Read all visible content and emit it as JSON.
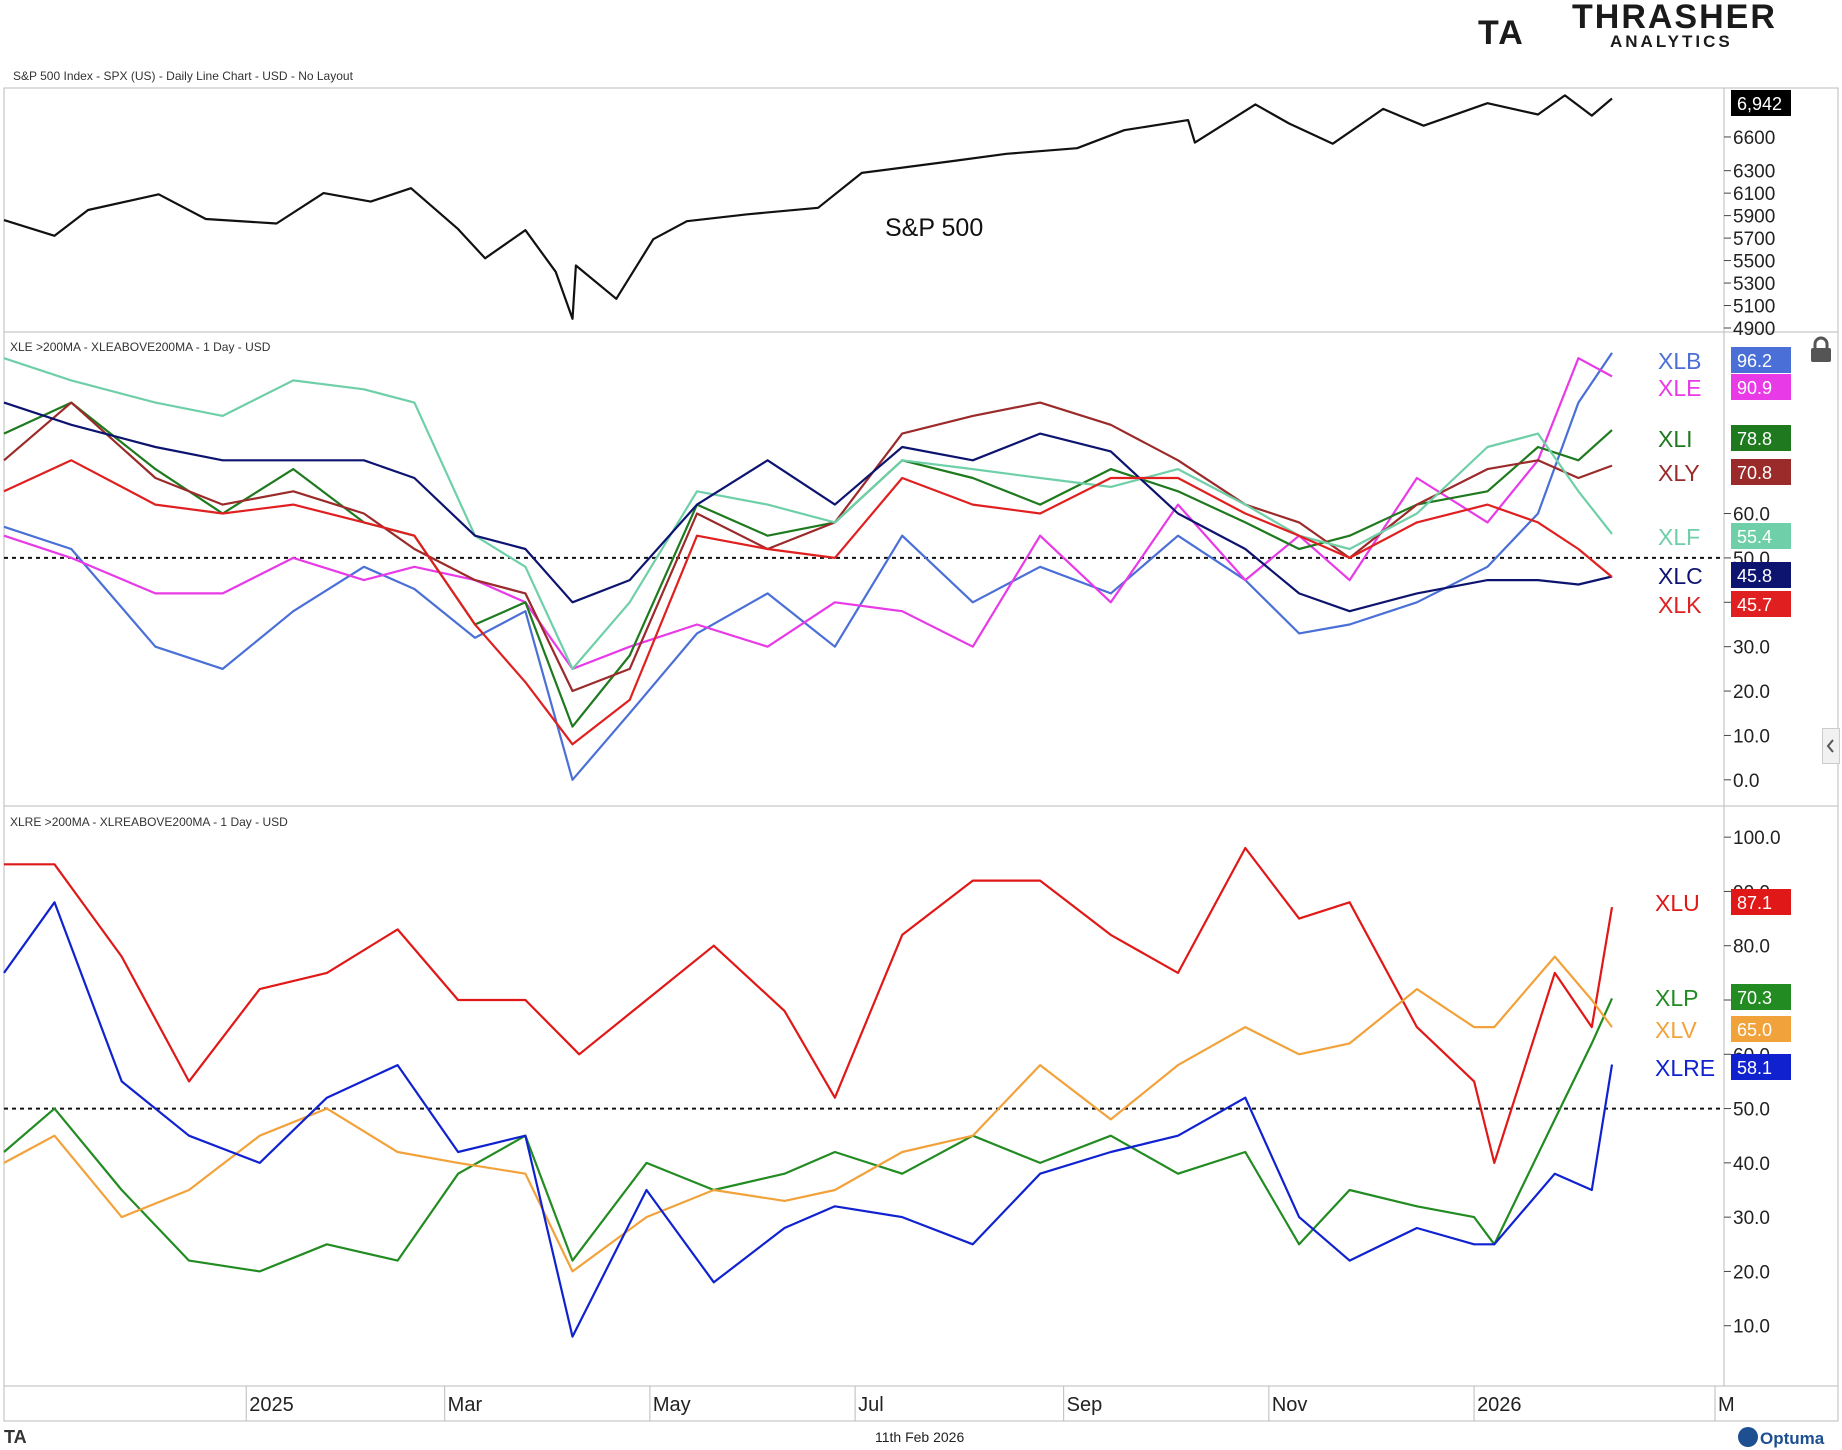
{
  "header": {
    "logo_mark": "TA",
    "logo_name": "THRASHER",
    "logo_sub": "ANALYTICS"
  },
  "footer": {
    "left_mark": "TA",
    "date": "11th Feb 2026",
    "brand": "Optuma"
  },
  "colors": {
    "spx": "#111111",
    "XLB": "#4a6fd6",
    "XLE": "#e83ae6",
    "XLI": "#1f7a1f",
    "XLY": "#9b2a2a",
    "XLF": "#6fcfa8",
    "XLC": "#0d1470",
    "XLK": "#e02020",
    "XLU": "#e01818",
    "XLP": "#228b22",
    "XLV": "#f2a23a",
    "XLRE": "#1022d0"
  },
  "chart_data": [
    {
      "type": "line",
      "title": "S&P 500 Index - SPX (US) - Daily Line Chart - USD - No Layout",
      "annotation": "S&P 500",
      "x_ticks": [
        "2025",
        "Mar",
        "May",
        "Jul",
        "Sep",
        "Nov",
        "2026",
        "M"
      ],
      "y_ticks": [
        "6600",
        "6300",
        "6100",
        "5900",
        "5700",
        "5500",
        "5300",
        "5100",
        "4900"
      ],
      "series": [
        {
          "id": "spx",
          "last_value": "6,942",
          "x": [
            "2024-10-21",
            "2024-11-05",
            "2024-11-15",
            "2024-12-06",
            "2024-12-20",
            "2025-01-10",
            "2025-01-24",
            "2025-02-07",
            "2025-02-19",
            "2025-03-05",
            "2025-03-13",
            "2025-03-25",
            "2025-04-03",
            "2025-04-08",
            "2025-04-09",
            "2025-04-21",
            "2025-05-02",
            "2025-05-12",
            "2025-05-30",
            "2025-06-20",
            "2025-07-03",
            "2025-07-31",
            "2025-08-15",
            "2025-09-05",
            "2025-09-19",
            "2025-10-08",
            "2025-10-10",
            "2025-10-28",
            "2025-11-07",
            "2025-11-20",
            "2025-12-05",
            "2025-12-17",
            "2026-01-05",
            "2026-01-20",
            "2026-01-28",
            "2026-02-05",
            "2026-02-11"
          ],
          "y": [
            5860,
            5720,
            5950,
            6090,
            5870,
            5830,
            6100,
            6025,
            6144,
            5780,
            5520,
            5770,
            5400,
            4982,
            5456,
            5160,
            5690,
            5850,
            5912,
            5970,
            6280,
            6390,
            6450,
            6500,
            6660,
            6750,
            6550,
            6890,
            6720,
            6540,
            6850,
            6700,
            6900,
            6800,
            6970,
            6790,
            6942
          ]
        }
      ]
    },
    {
      "type": "line",
      "title": "XLE >200MA  - XLEABOVE200MA - 1 Day - USD",
      "x_ticks": [
        "2025",
        "Mar",
        "May",
        "Jul",
        "Sep",
        "Nov",
        "2026",
        "M"
      ],
      "y_ticks": [
        "60.0",
        "50.0",
        "40.0",
        "30.0",
        "20.0",
        "10.0",
        "0.0"
      ],
      "reference_line": 50,
      "series": [
        {
          "name": "XLB",
          "last_value": "96.2",
          "x": [
            "2024-10-21",
            "2024-11-10",
            "2024-12-05",
            "2024-12-25",
            "2025-01-15",
            "2025-02-05",
            "2025-02-20",
            "2025-03-10",
            "2025-03-25",
            "2025-04-08",
            "2025-04-25",
            "2025-05-15",
            "2025-06-05",
            "2025-06-25",
            "2025-07-15",
            "2025-08-05",
            "2025-08-25",
            "2025-09-15",
            "2025-10-05",
            "2025-10-25",
            "2025-11-10",
            "2025-11-25",
            "2025-12-15",
            "2026-01-05",
            "2026-01-20",
            "2026-02-01",
            "2026-02-11"
          ],
          "y": [
            57,
            52,
            30,
            25,
            38,
            48,
            43,
            32,
            38,
            0,
            15,
            33,
            42,
            30,
            55,
            40,
            48,
            42,
            55,
            45,
            33,
            35,
            40,
            48,
            60,
            85,
            96.2
          ]
        },
        {
          "name": "XLE",
          "last_value": "90.9",
          "x": [
            "2024-10-21",
            "2024-11-10",
            "2024-12-05",
            "2024-12-25",
            "2025-01-15",
            "2025-02-05",
            "2025-02-20",
            "2025-03-10",
            "2025-03-25",
            "2025-04-08",
            "2025-04-25",
            "2025-05-15",
            "2025-06-05",
            "2025-06-25",
            "2025-07-15",
            "2025-08-05",
            "2025-08-25",
            "2025-09-15",
            "2025-10-05",
            "2025-10-25",
            "2025-11-10",
            "2025-11-25",
            "2025-12-15",
            "2026-01-05",
            "2026-01-20",
            "2026-02-01",
            "2026-02-11"
          ],
          "y": [
            55,
            50,
            42,
            42,
            50,
            45,
            48,
            45,
            40,
            25,
            30,
            35,
            30,
            40,
            38,
            30,
            55,
            40,
            62,
            45,
            55,
            45,
            68,
            58,
            72,
            95,
            90.9
          ]
        },
        {
          "name": "XLI",
          "last_value": "78.8",
          "x": [
            "2024-10-21",
            "2024-11-10",
            "2024-12-05",
            "2024-12-25",
            "2025-01-15",
            "2025-02-05",
            "2025-02-20",
            "2025-03-10",
            "2025-03-25",
            "2025-04-08",
            "2025-04-25",
            "2025-05-15",
            "2025-06-05",
            "2025-06-25",
            "2025-07-15",
            "2025-08-05",
            "2025-08-25",
            "2025-09-15",
            "2025-10-05",
            "2025-10-25",
            "2025-11-10",
            "2025-11-25",
            "2025-12-15",
            "2026-01-05",
            "2026-01-20",
            "2026-02-01",
            "2026-02-11"
          ],
          "y": [
            78,
            85,
            70,
            60,
            70,
            58,
            55,
            35,
            40,
            12,
            28,
            62,
            55,
            58,
            72,
            68,
            62,
            70,
            65,
            58,
            52,
            55,
            62,
            65,
            75,
            72,
            78.8
          ]
        },
        {
          "name": "XLY",
          "last_value": "70.8",
          "x": [
            "2024-10-21",
            "2024-11-10",
            "2024-12-05",
            "2024-12-25",
            "2025-01-15",
            "2025-02-05",
            "2025-02-20",
            "2025-03-10",
            "2025-03-25",
            "2025-04-08",
            "2025-04-25",
            "2025-05-15",
            "2025-06-05",
            "2025-06-25",
            "2025-07-15",
            "2025-08-05",
            "2025-08-25",
            "2025-09-15",
            "2025-10-05",
            "2025-10-25",
            "2025-11-10",
            "2025-11-25",
            "2025-12-15",
            "2026-01-05",
            "2026-01-20",
            "2026-02-01",
            "2026-02-11"
          ],
          "y": [
            72,
            85,
            68,
            62,
            65,
            60,
            52,
            45,
            42,
            20,
            25,
            60,
            52,
            58,
            78,
            82,
            85,
            80,
            72,
            62,
            58,
            50,
            62,
            70,
            72,
            68,
            70.8
          ]
        },
        {
          "name": "XLF",
          "last_value": "55.4",
          "x": [
            "2024-10-21",
            "2024-11-10",
            "2024-12-05",
            "2024-12-25",
            "2025-01-15",
            "2025-02-05",
            "2025-02-20",
            "2025-03-10",
            "2025-03-25",
            "2025-04-08",
            "2025-04-25",
            "2025-05-15",
            "2025-06-05",
            "2025-06-25",
            "2025-07-15",
            "2025-08-05",
            "2025-08-25",
            "2025-09-15",
            "2025-10-05",
            "2025-10-25",
            "2025-11-10",
            "2025-11-25",
            "2025-12-15",
            "2026-01-05",
            "2026-01-20",
            "2026-02-01",
            "2026-02-11"
          ],
          "y": [
            95,
            90,
            85,
            82,
            90,
            88,
            85,
            55,
            48,
            25,
            40,
            65,
            62,
            58,
            72,
            70,
            68,
            66,
            70,
            62,
            55,
            52,
            60,
            75,
            78,
            65,
            55.4
          ]
        },
        {
          "name": "XLC",
          "last_value": "45.8",
          "x": [
            "2024-10-21",
            "2024-11-10",
            "2024-12-05",
            "2024-12-25",
            "2025-01-15",
            "2025-02-05",
            "2025-02-20",
            "2025-03-10",
            "2025-03-25",
            "2025-04-08",
            "2025-04-25",
            "2025-05-15",
            "2025-06-05",
            "2025-06-25",
            "2025-07-15",
            "2025-08-05",
            "2025-08-25",
            "2025-09-15",
            "2025-10-05",
            "2025-10-25",
            "2025-11-10",
            "2025-11-25",
            "2025-12-15",
            "2026-01-05",
            "2026-01-20",
            "2026-02-01",
            "2026-02-11"
          ],
          "y": [
            85,
            80,
            75,
            72,
            72,
            72,
            68,
            55,
            52,
            40,
            45,
            62,
            72,
            62,
            75,
            72,
            78,
            74,
            60,
            52,
            42,
            38,
            42,
            45,
            45,
            44,
            45.8
          ]
        },
        {
          "name": "XLK",
          "last_value": "45.7",
          "x": [
            "2024-10-21",
            "2024-11-10",
            "2024-12-05",
            "2024-12-25",
            "2025-01-15",
            "2025-02-05",
            "2025-02-20",
            "2025-03-10",
            "2025-03-25",
            "2025-04-08",
            "2025-04-25",
            "2025-05-15",
            "2025-06-05",
            "2025-06-25",
            "2025-07-15",
            "2025-08-05",
            "2025-08-25",
            "2025-09-15",
            "2025-10-05",
            "2025-10-25",
            "2025-11-10",
            "2025-11-25",
            "2025-12-15",
            "2026-01-05",
            "2026-01-20",
            "2026-02-01",
            "2026-02-11"
          ],
          "y": [
            65,
            72,
            62,
            60,
            62,
            58,
            55,
            35,
            22,
            8,
            18,
            55,
            52,
            50,
            68,
            62,
            60,
            68,
            68,
            60,
            55,
            50,
            58,
            62,
            58,
            52,
            45.7
          ]
        }
      ]
    },
    {
      "type": "line",
      "title": "XLRE >200MA - XLREABOVE200MA - 1 Day - USD",
      "x_ticks": [
        "2025",
        "Mar",
        "May",
        "Jul",
        "Sep",
        "Nov",
        "2026",
        "M"
      ],
      "y_ticks": [
        "100.0",
        "90.0",
        "80.0",
        "70.0",
        "60.0",
        "50.0",
        "40.0",
        "30.0",
        "20.0",
        "10.0"
      ],
      "reference_line": 50,
      "series": [
        {
          "name": "XLU",
          "last_value": "87.1",
          "x": [
            "2024-10-21",
            "2024-11-05",
            "2024-11-25",
            "2024-12-15",
            "2025-01-05",
            "2025-01-25",
            "2025-02-15",
            "2025-03-05",
            "2025-03-25",
            "2025-04-10",
            "2025-04-30",
            "2025-05-20",
            "2025-06-10",
            "2025-06-25",
            "2025-07-15",
            "2025-08-05",
            "2025-08-25",
            "2025-09-15",
            "2025-10-05",
            "2025-10-25",
            "2025-11-10",
            "2025-11-25",
            "2025-12-15",
            "2026-01-01",
            "2026-01-07",
            "2026-01-25",
            "2026-02-05",
            "2026-02-11"
          ],
          "y": [
            95,
            95,
            78,
            55,
            72,
            75,
            83,
            70,
            70,
            60,
            70,
            80,
            68,
            52,
            82,
            92,
            92,
            82,
            75,
            98,
            85,
            88,
            65,
            55,
            40,
            75,
            65,
            87.1
          ]
        },
        {
          "name": "XLP",
          "last_value": "70.3",
          "x": [
            "2024-10-21",
            "2024-11-05",
            "2024-11-25",
            "2024-12-15",
            "2025-01-05",
            "2025-01-25",
            "2025-02-15",
            "2025-03-05",
            "2025-03-25",
            "2025-04-08",
            "2025-04-30",
            "2025-05-20",
            "2025-06-10",
            "2025-06-25",
            "2025-07-15",
            "2025-08-05",
            "2025-08-25",
            "2025-09-15",
            "2025-10-05",
            "2025-10-25",
            "2025-11-10",
            "2025-11-25",
            "2025-12-15",
            "2026-01-01",
            "2026-01-07",
            "2026-01-25",
            "2026-02-05",
            "2026-02-11"
          ],
          "y": [
            42,
            50,
            35,
            22,
            20,
            25,
            22,
            38,
            45,
            22,
            40,
            35,
            38,
            42,
            38,
            45,
            40,
            45,
            38,
            42,
            25,
            35,
            32,
            30,
            25,
            48,
            62,
            70.3
          ]
        },
        {
          "name": "XLV",
          "last_value": "65.0",
          "x": [
            "2024-10-21",
            "2024-11-05",
            "2024-11-25",
            "2024-12-15",
            "2025-01-05",
            "2025-01-25",
            "2025-02-15",
            "2025-03-05",
            "2025-03-25",
            "2025-04-08",
            "2025-04-30",
            "2025-05-20",
            "2025-06-10",
            "2025-06-25",
            "2025-07-15",
            "2025-08-05",
            "2025-08-25",
            "2025-09-15",
            "2025-10-05",
            "2025-10-25",
            "2025-11-10",
            "2025-11-25",
            "2025-12-15",
            "2026-01-01",
            "2026-01-07",
            "2026-01-25",
            "2026-02-05",
            "2026-02-11"
          ],
          "y": [
            40,
            45,
            30,
            35,
            45,
            50,
            42,
            40,
            38,
            20,
            30,
            35,
            33,
            35,
            42,
            45,
            58,
            48,
            58,
            65,
            60,
            62,
            72,
            65,
            65,
            78,
            70,
            65.0
          ]
        },
        {
          "name": "XLRE",
          "last_value": "58.1",
          "x": [
            "2024-10-21",
            "2024-11-05",
            "2024-11-25",
            "2024-12-15",
            "2025-01-05",
            "2025-01-25",
            "2025-02-15",
            "2025-03-05",
            "2025-03-25",
            "2025-04-08",
            "2025-04-30",
            "2025-05-20",
            "2025-06-10",
            "2025-06-25",
            "2025-07-15",
            "2025-08-05",
            "2025-08-25",
            "2025-09-15",
            "2025-10-05",
            "2025-10-25",
            "2025-11-10",
            "2025-11-25",
            "2025-12-15",
            "2026-01-01",
            "2026-01-07",
            "2026-01-25",
            "2026-02-05",
            "2026-02-11"
          ],
          "y": [
            75,
            88,
            55,
            45,
            40,
            52,
            58,
            42,
            45,
            8,
            35,
            18,
            28,
            32,
            30,
            25,
            38,
            42,
            45,
            52,
            30,
            22,
            28,
            25,
            25,
            38,
            35,
            58.1
          ]
        }
      ]
    }
  ]
}
